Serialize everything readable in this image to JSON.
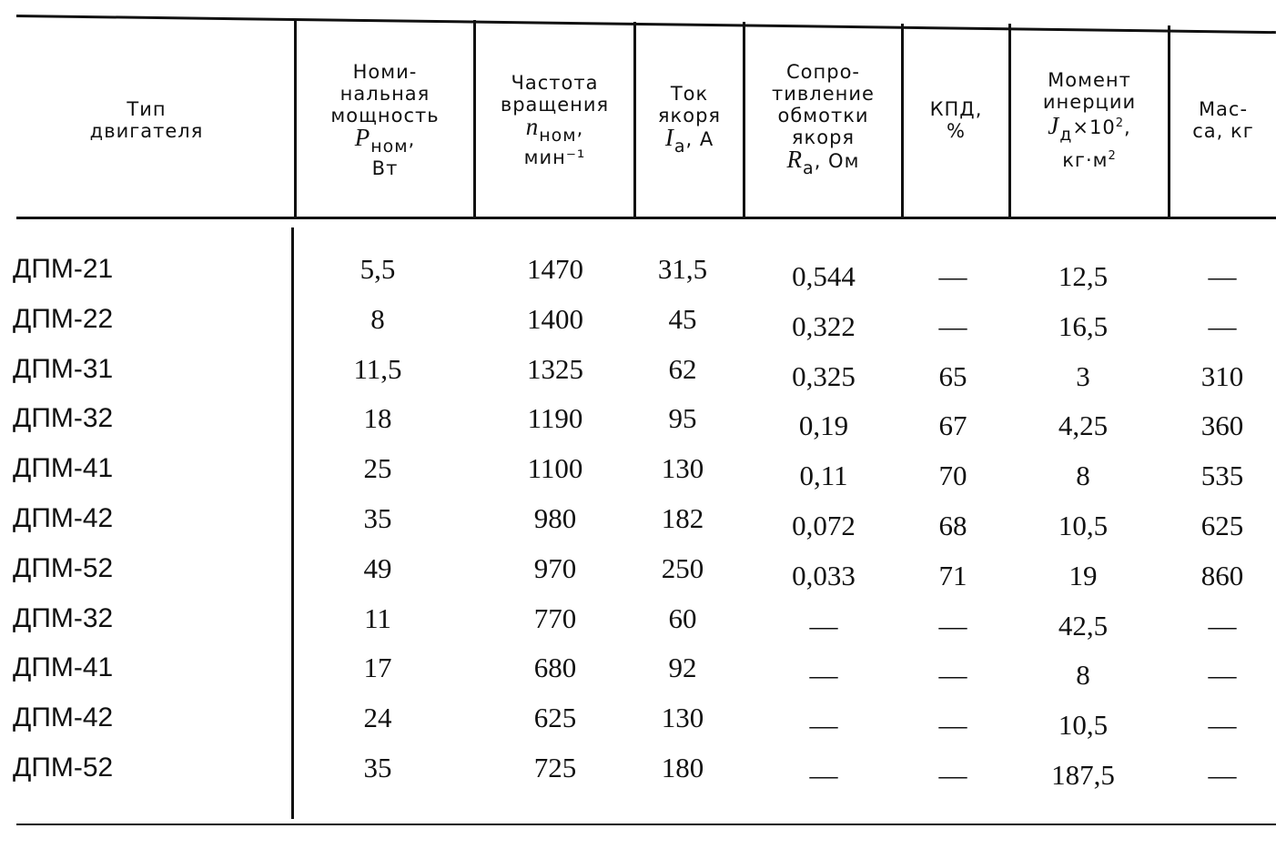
{
  "headers": {
    "type": [
      "Тип",
      "двигателя"
    ],
    "power": {
      "l1": "Номи-",
      "l2": "нальная",
      "l3": "мощность",
      "sym": "P",
      "sub": "ном",
      "tail": ",",
      "unit": "Вт"
    },
    "speed": {
      "l1": "Частота",
      "l2": "вращения",
      "sym": "n",
      "sub": "ном",
      "tail": ",",
      "unit": "мин⁻¹"
    },
    "current": {
      "l1": "Ток",
      "l2": "якоря",
      "sym": "I",
      "sub": "а",
      "tail": ", А"
    },
    "resistance": {
      "l1": "Сопро-",
      "l2": "тивление",
      "l3": "обмотки",
      "l4": "якоря",
      "sym": "R",
      "sub": "а",
      "tail": ", Ом"
    },
    "efficiency": {
      "l1": "КПД,",
      "l2": "%"
    },
    "inertia": {
      "l1": "Момент",
      "l2": "инерции",
      "sym": "J",
      "sub": "д",
      "tail": "×10",
      "sup": "2",
      "tail2": ",",
      "unit": "кг·м",
      "unit_sup": "2"
    },
    "mass": {
      "l1": "Мас-",
      "l2": "са, кг"
    }
  },
  "rows": [
    [
      "ДПМ-21",
      "5,5",
      "1470",
      "31,5",
      "0,544",
      "—",
      "12,5",
      "—"
    ],
    [
      "ДПМ-22",
      "8",
      "1400",
      "45",
      "0,322",
      "—",
      "16,5",
      "—"
    ],
    [
      "ДПМ-31",
      "11,5",
      "1325",
      "62",
      "0,325",
      "65",
      "3",
      "310"
    ],
    [
      "ДПМ-32",
      "18",
      "1190",
      "95",
      "0,19",
      "67",
      "4,25",
      "360"
    ],
    [
      "ДПМ-41",
      "25",
      "1100",
      "130",
      "0,11",
      "70",
      "8",
      "535"
    ],
    [
      "ДПМ-42",
      "35",
      "980",
      "182",
      "0,072",
      "68",
      "10,5",
      "625"
    ],
    [
      "ДПМ-52",
      "49",
      "970",
      "250",
      "0,033",
      "71",
      "19",
      "860"
    ],
    [
      "ДПМ-32",
      "11",
      "770",
      "60",
      "—",
      "—",
      "42,5",
      "—"
    ],
    [
      "ДПМ-41",
      "17",
      "680",
      "92",
      "—",
      "—",
      "8",
      "—"
    ],
    [
      "ДПМ-42",
      "24",
      "625",
      "130",
      "—",
      "—",
      "10,5",
      "—"
    ],
    [
      "ДПМ-52",
      "35",
      "725",
      "180",
      "—",
      "—",
      "187,5",
      "—"
    ]
  ]
}
